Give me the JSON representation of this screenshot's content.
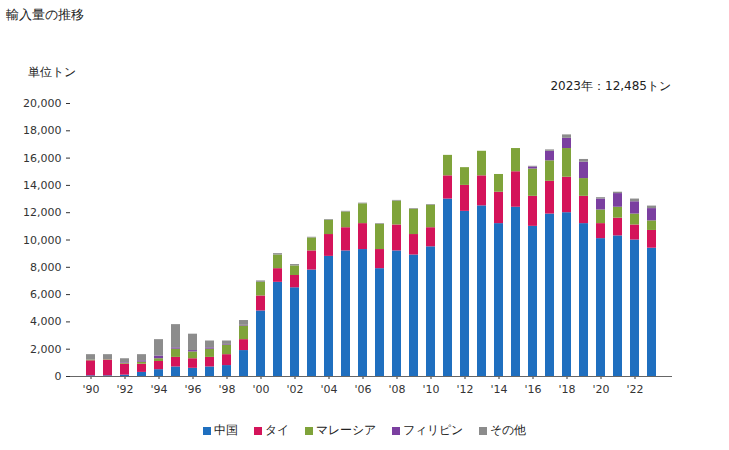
{
  "chart_data": {
    "type": "bar",
    "stacked": true,
    "title": "輸入量の推移",
    "y_label": "単位トン",
    "annotation": "2023年：12,485トン",
    "legend": "bottom",
    "grid": false,
    "categories": [
      "'90",
      null,
      "'92",
      null,
      "'94",
      null,
      "'96",
      null,
      "'98",
      null,
      "'00",
      null,
      "'02",
      null,
      "'04",
      null,
      "'06",
      null,
      "'08",
      null,
      "'10",
      null,
      "'12",
      null,
      "'14",
      null,
      "'16",
      null,
      "'18",
      null,
      "'20",
      null,
      "'22",
      null
    ],
    "ylim": [
      0,
      20000
    ],
    "yticks": [
      0,
      {
        "value": 2000,
        "label": "2,000"
      },
      {
        "value": 4000,
        "label": "4,000"
      },
      {
        "value": 6000,
        "label": "6,000"
      },
      {
        "value": 8000,
        "label": "8,000"
      },
      {
        "value": 10000,
        "label": "10,000"
      },
      {
        "value": 12000,
        "label": "12,000"
      },
      {
        "value": 14000,
        "label": "14,000"
      },
      {
        "value": 16000,
        "label": "16,000"
      },
      {
        "value": 18000,
        "label": "18,000"
      },
      {
        "value": 20000,
        "label": "20,000"
      }
    ],
    "series": [
      {
        "name": "中国",
        "color": "#1f6fbf",
        "values": [
          50,
          50,
          100,
          300,
          500,
          700,
          600,
          700,
          800,
          1900,
          4800,
          6900,
          6500,
          7800,
          8800,
          9200,
          9300,
          7900,
          9200,
          8900,
          9500,
          13000,
          12100,
          12500,
          11200,
          12400,
          11000,
          11900,
          12000,
          11200,
          10100,
          10300,
          10000,
          9400
        ]
      },
      {
        "name": "タイ",
        "color": "#d4145a",
        "values": [
          1100,
          1150,
          800,
          600,
          600,
          700,
          700,
          700,
          800,
          800,
          1100,
          1000,
          900,
          1400,
          1600,
          1700,
          1900,
          1400,
          1900,
          1500,
          1400,
          1700,
          1900,
          2200,
          2300,
          2600,
          2200,
          2400,
          2600,
          2000,
          1100,
          1300,
          1100,
          1300
        ]
      },
      {
        "name": "マレーシア",
        "color": "#7fa33a",
        "values": [
          50,
          30,
          50,
          150,
          200,
          600,
          500,
          600,
          700,
          1000,
          1000,
          1000,
          700,
          950,
          1050,
          1150,
          1450,
          1850,
          1750,
          1850,
          1650,
          1500,
          1300,
          1800,
          1300,
          1700,
          2000,
          1500,
          2100,
          1300,
          1000,
          800,
          800,
          700
        ]
      },
      {
        "name": "フィリピン",
        "color": "#7b3fa0",
        "values": [
          0,
          0,
          50,
          100,
          200,
          100,
          100,
          100,
          50,
          50,
          0,
          0,
          0,
          0,
          0,
          0,
          0,
          0,
          0,
          0,
          0,
          0,
          0,
          0,
          0,
          0,
          150,
          700,
          750,
          1200,
          800,
          1000,
          900,
          900
        ]
      },
      {
        "name": "その他",
        "color": "#8c8c8c",
        "values": [
          400,
          370,
          300,
          450,
          1200,
          1700,
          1200,
          500,
          250,
          350,
          100,
          100,
          100,
          50,
          50,
          50,
          50,
          50,
          50,
          50,
          50,
          0,
          0,
          0,
          0,
          0,
          50,
          100,
          250,
          200,
          100,
          100,
          200,
          185
        ]
      }
    ]
  }
}
